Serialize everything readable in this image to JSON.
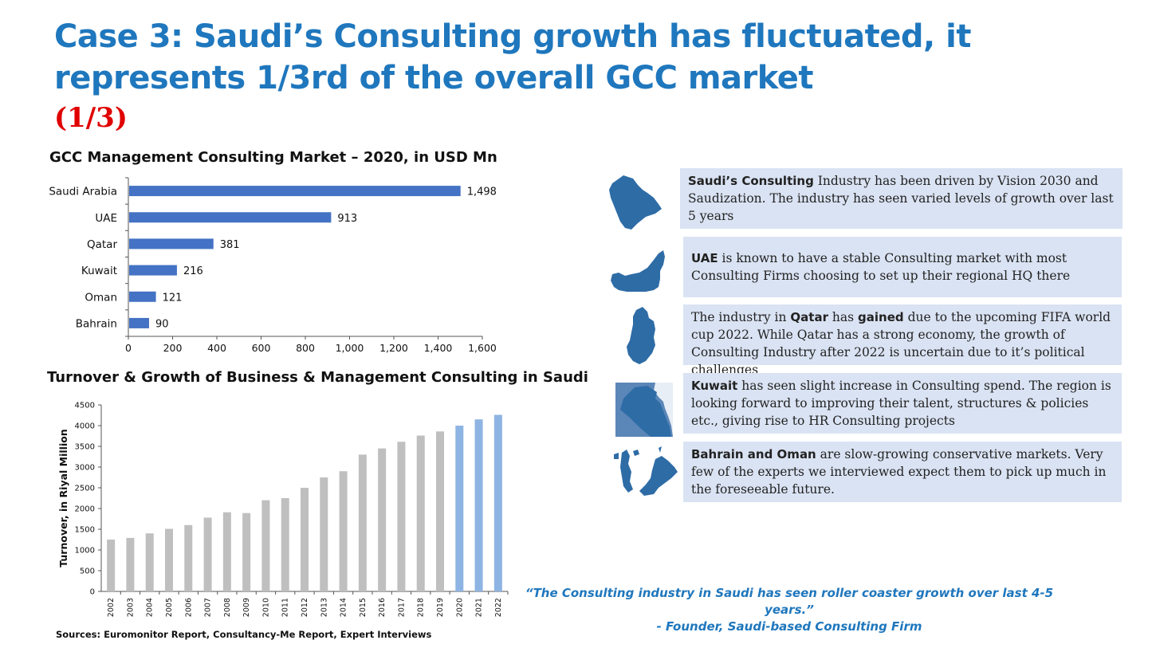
{
  "slide": {
    "title_line1": "Case 3: Saudi’s Consulting growth has fluctuated, it",
    "title_line2": "represents 1/3rd of the overall GCC market",
    "part": "(1/3)",
    "title_color": "#1f77bd",
    "part_color": "#e00000"
  },
  "chart1_title": "GCC Management Consulting Market – 2020, in USD Mn",
  "chart2_title": "Turnover & Growth of Business & Management Consulting in Saudi",
  "chart_data": [
    {
      "type": "bar",
      "orientation": "horizontal",
      "categories": [
        "Saudi Arabia",
        "UAE",
        "Qatar",
        "Kuwait",
        "Oman",
        "Bahrain"
      ],
      "values": [
        1498,
        913,
        381,
        216,
        121,
        90
      ],
      "value_labels": [
        "1,498",
        "913",
        "381",
        "216",
        "121",
        "90"
      ],
      "xlim": [
        0,
        1600
      ],
      "xticks": [
        "0",
        "200",
        "400",
        "600",
        "800",
        "1,000",
        "1,200",
        "1,400",
        "1,600"
      ],
      "color": "#4472c4",
      "grid": false
    },
    {
      "type": "bar",
      "categories": [
        "2002",
        "2003",
        "2004",
        "2005",
        "2006",
        "2007",
        "2008",
        "2009",
        "2010",
        "2011",
        "2012",
        "2013",
        "2014",
        "2015",
        "2016",
        "2017",
        "2018",
        "2019",
        "2020",
        "2021",
        "2022"
      ],
      "values": [
        1250,
        1290,
        1400,
        1510,
        1600,
        1780,
        1910,
        1890,
        2200,
        2250,
        2500,
        2750,
        2900,
        3300,
        3450,
        3610,
        3760,
        3860,
        4000,
        4150,
        4260
      ],
      "ylabel": "Turnover, in Riyal Million",
      "ylim": [
        0,
        4500
      ],
      "yticks": [
        "0",
        "500",
        "1000",
        "1500",
        "2000",
        "2500",
        "3000",
        "3500",
        "4000",
        "4500"
      ],
      "colors": {
        "actual": "#bfbfbf",
        "forecast": "#8eb4e3"
      },
      "forecast_from": "2020",
      "grid": false
    }
  ],
  "boxes": [
    {
      "bold": "Saudi’s Consulting",
      "text": " Industry has been driven by Vision 2030 and Saudization. The industry has seen varied levels of growth over last 5 years"
    },
    {
      "bold": "UAE",
      "text": " is known to have a stable Consulting market with most Consulting Firms choosing to set up their regional HQ there"
    },
    {
      "pre": "The industry in ",
      "bold": "Qatar",
      "mid": " has ",
      "bold2": "gained",
      "text": " due to the upcoming FIFA world cup 2022. While Qatar has a strong economy, the growth of Consulting Industry after 2022 is uncertain due to it’s political challenges"
    },
    {
      "bold": "Kuwait",
      "text": " has seen slight increase in Consulting spend. The region is looking forward to improving their talent, structures & policies etc., giving rise to HR Consulting projects"
    },
    {
      "bold": "Bahrain and Oman",
      "text": " are slow-growing conservative markets. Very few of the experts we interviewed expect them to pick up much in the foreseeable future."
    }
  ],
  "maps": [
    "saudi-arabia-map-icon",
    "uae-map-icon",
    "qatar-map-icon",
    "kuwait-map-icon",
    "bahrain-oman-map-icon"
  ],
  "map_color": "#2e6ca6",
  "box_color": "#dae3f3",
  "quote": {
    "line1": "“The Consulting industry in Saudi has seen roller coaster growth over last 4-5 years.”",
    "line2": "- Founder, Saudi-based Consulting Firm"
  },
  "sources": "Sources: Euromonitor Report, Consultancy-Me Report, Expert Interviews"
}
